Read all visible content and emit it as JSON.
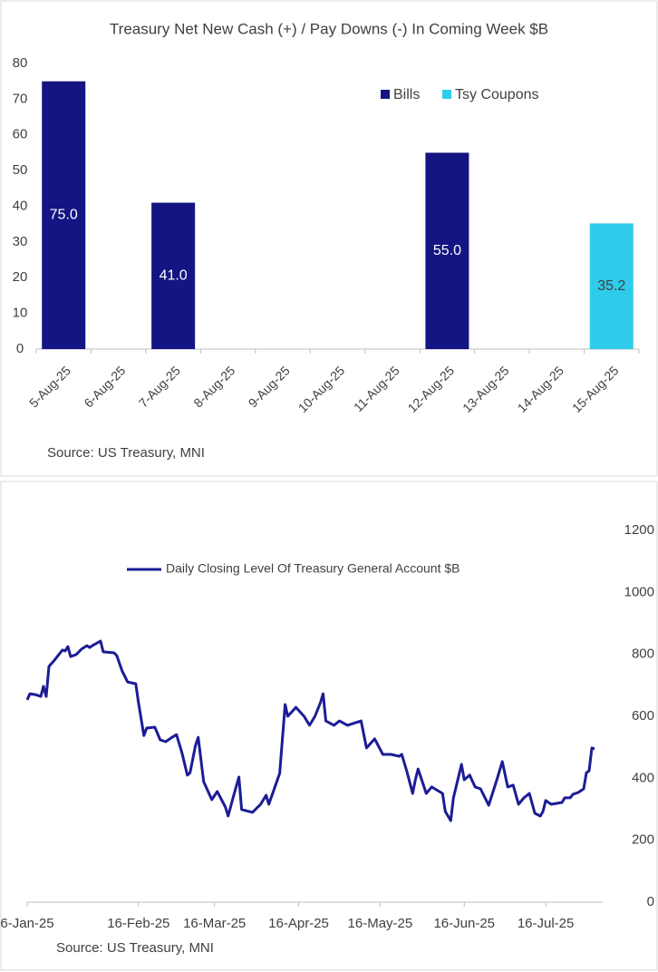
{
  "chart_data": [
    {
      "type": "bar",
      "title": "Treasury Net New Cash (+) / Pay Downs (-)  In Coming Week $B",
      "categories": [
        "5-Aug-25",
        "6-Aug-25",
        "7-Aug-25",
        "8-Aug-25",
        "9-Aug-25",
        "10-Aug-25",
        "11-Aug-25",
        "12-Aug-25",
        "13-Aug-25",
        "14-Aug-25",
        "15-Aug-25"
      ],
      "series": [
        {
          "name": "Bills",
          "color": "#141483",
          "values": [
            75,
            null,
            41,
            null,
            null,
            null,
            null,
            55,
            null,
            null,
            null
          ],
          "value_labels": [
            "75.0",
            null,
            "41.0",
            null,
            null,
            null,
            null,
            "55.0",
            null,
            null,
            null
          ]
        },
        {
          "name": "Tsy Coupons",
          "color": "#2ecbeb",
          "values": [
            null,
            null,
            null,
            null,
            null,
            null,
            null,
            null,
            null,
            null,
            35.2
          ],
          "value_labels": [
            null,
            null,
            null,
            null,
            null,
            null,
            null,
            null,
            null,
            null,
            "35.2"
          ]
        }
      ],
      "ylim": [
        0,
        80
      ],
      "yticks": [
        0,
        10,
        20,
        30,
        40,
        50,
        60,
        70,
        80
      ],
      "legend": "upper right",
      "source": "Source: US Treasury, MNI"
    },
    {
      "type": "line",
      "x": [
        "2025-01-06",
        "2025-01-07",
        "2025-01-09",
        "2025-01-11",
        "2025-01-12",
        "2025-01-13",
        "2025-01-14",
        "2025-01-16",
        "2025-01-19",
        "2025-01-20",
        "2025-01-21",
        "2025-01-22",
        "2025-01-24",
        "2025-01-26",
        "2025-01-28",
        "2025-01-29",
        "2025-01-30",
        "2025-02-02",
        "2025-02-03",
        "2025-02-07",
        "2025-02-08",
        "2025-02-10",
        "2025-02-12",
        "2025-02-15",
        "2025-02-16",
        "2025-02-18",
        "2025-02-19",
        "2025-02-22",
        "2025-02-24",
        "2025-02-26",
        "2025-02-28",
        "2025-03-02",
        "2025-03-04",
        "2025-03-06",
        "2025-03-07",
        "2025-03-09",
        "2025-03-10",
        "2025-03-12",
        "2025-03-15",
        "2025-03-17",
        "2025-03-20",
        "2025-03-21",
        "2025-03-23",
        "2025-03-25",
        "2025-03-26",
        "2025-03-30",
        "2025-04-02",
        "2025-04-04",
        "2025-04-05",
        "2025-04-07",
        "2025-04-09",
        "2025-04-11",
        "2025-04-12",
        "2025-04-15",
        "2025-04-18",
        "2025-04-20",
        "2025-04-22",
        "2025-04-24",
        "2025-04-25",
        "2025-04-26",
        "2025-04-29",
        "2025-05-01",
        "2025-05-04",
        "2025-05-09",
        "2025-05-11",
        "2025-05-14",
        "2025-05-17",
        "2025-05-20",
        "2025-05-23",
        "2025-05-24",
        "2025-05-26",
        "2025-05-28",
        "2025-05-29",
        "2025-05-30",
        "2025-06-02",
        "2025-06-04",
        "2025-06-08",
        "2025-06-09",
        "2025-06-11",
        "2025-06-12",
        "2025-06-15",
        "2025-06-16",
        "2025-06-18",
        "2025-06-20",
        "2025-06-22",
        "2025-06-25",
        "2025-06-28",
        "2025-06-30",
        "2025-07-02",
        "2025-07-04",
        "2025-07-06",
        "2025-07-08",
        "2025-07-10",
        "2025-07-12",
        "2025-07-14",
        "2025-07-15",
        "2025-07-16",
        "2025-07-18",
        "2025-07-22",
        "2025-07-23",
        "2025-07-25",
        "2025-07-26",
        "2025-07-28",
        "2025-07-30",
        "2025-07-31",
        "2025-08-01",
        "2025-08-02",
        "2025-08-03"
      ],
      "series": [
        {
          "name": "Daily Closing Level Of Treasury General Account $B",
          "color": "#1c1c96",
          "values": [
            653,
            673,
            670,
            664,
            697,
            664,
            761,
            781,
            814,
            811,
            825,
            793,
            799,
            817,
            828,
            822,
            828,
            843,
            808,
            805,
            796,
            746,
            711,
            705,
            644,
            538,
            562,
            565,
            524,
            518,
            530,
            541,
            483,
            410,
            418,
            506,
            532,
            389,
            331,
            357,
            307,
            278,
            342,
            404,
            299,
            290,
            316,
            345,
            316,
            366,
            416,
            638,
            600,
            629,
            600,
            571,
            600,
            644,
            673,
            585,
            571,
            585,
            571,
            585,
            498,
            527,
            477,
            477,
            471,
            477,
            418,
            351,
            395,
            430,
            351,
            372,
            351,
            293,
            263,
            337,
            445,
            395,
            410,
            372,
            366,
            313,
            395,
            454,
            372,
            378,
            316,
            337,
            351,
            287,
            278,
            293,
            328,
            316,
            322,
            337,
            337,
            348,
            354,
            366,
            418,
            424,
            498,
            495
          ]
        }
      ],
      "xlim": [
        "2025-01-06",
        "2025-08-06"
      ],
      "xticks": [
        {
          "value": "2025-01-06",
          "label": "6-Jan-25"
        },
        {
          "value": "2025-02-16",
          "label": "16-Feb-25"
        },
        {
          "value": "2025-03-16",
          "label": "16-Mar-25"
        },
        {
          "value": "2025-04-16",
          "label": "16-Apr-25"
        },
        {
          "value": "2025-05-16",
          "label": "16-May-25"
        },
        {
          "value": "2025-06-16",
          "label": "16-Jun-25"
        },
        {
          "value": "2025-07-16",
          "label": "16-Jul-25"
        }
      ],
      "ylim": [
        0,
        1200
      ],
      "yticks": [
        0,
        200,
        400,
        600,
        800,
        1000,
        1200
      ],
      "legend": "upper left",
      "source": "Source: US Treasury, MNI"
    }
  ]
}
